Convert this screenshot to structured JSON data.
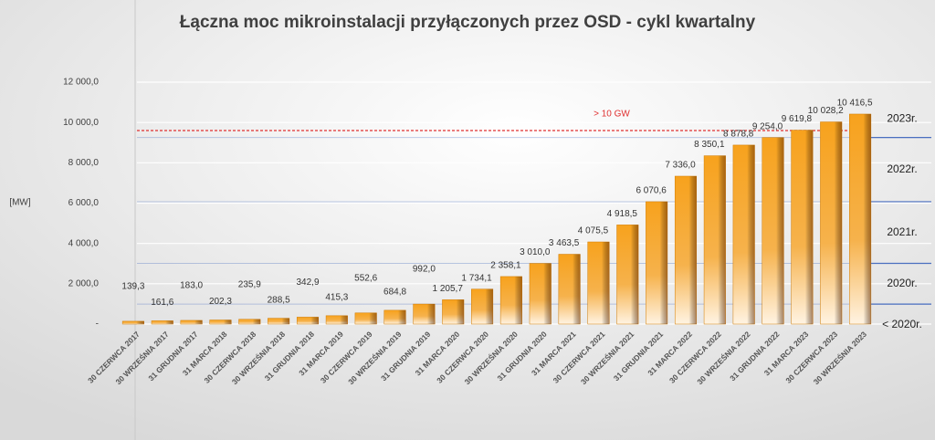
{
  "chart_data": {
    "type": "bar",
    "title": "Łączna moc mikroinstalacji przyłączonych przez OSD - cykl kwartalny",
    "y_label": "[MW]",
    "categories": [
      "30 CZERWCA 2017",
      "30 WRZEŚNIA 2017",
      "31 GRUDNIA 2017",
      "31 MARCA 2018",
      "30 CZERWCA 2018",
      "30 WRZEŚNIA 2018",
      "31 GRUDNIA 2018",
      "31 MARCA 2019",
      "30 CZERWCA 2019",
      "30 WRZEŚNIA 2019",
      "31 GRUDNIA 2019",
      "31 MARCA 2020",
      "30 CZERWCA 2020",
      "30 WRZEŚNIA 2020",
      "31 GRUDNIA 2020",
      "31 MARCA 2021",
      "30 CZERWCA 2021",
      "30 WRZEŚNIA 2021",
      "31 GRUDNIA 2021",
      "31 MARCA 2022",
      "30 CZERWCA 2022",
      "30 WRZEŚNIA 2022",
      "31 GRUDNIA 2022",
      "31 MARCA 2023",
      "30 CZERWCA 2023",
      "30 WRZEŚNIA 2023"
    ],
    "values": [
      139.3,
      161.6,
      183.0,
      202.3,
      235.9,
      288.5,
      342.9,
      415.3,
      552.6,
      684.8,
      992.0,
      1205.7,
      1734.1,
      2358.1,
      3010.0,
      3463.5,
      4075.5,
      4918.5,
      6070.6,
      7336.0,
      8350.1,
      8878.8,
      9254.0,
      9619.8,
      10028.2,
      10416.5
    ],
    "value_labels": [
      "139,3",
      "161,6",
      "183,0",
      "202,3",
      "235,9",
      "288,5",
      "342,9",
      "415,3",
      "552,6",
      "684,8",
      "992,0",
      "1 205,7",
      "1 734,1",
      "2 358,1",
      "3 010,0",
      "3 463,5",
      "4 075,5",
      "4 918,5",
      "6 070,6",
      "7 336,0",
      "8 350,1",
      "8 878,8",
      "9 254,0",
      "9 619,8",
      "10 028,2",
      "10 416,5"
    ],
    "color": "#f39a1a",
    "ylim": [
      0,
      12000
    ],
    "yticks": [
      {
        "value": 0,
        "label": "-"
      },
      {
        "value": 2000,
        "label": "2 000,0"
      },
      {
        "value": 4000,
        "label": "4 000,0"
      },
      {
        "value": 6000,
        "label": "6 000,0"
      },
      {
        "value": 8000,
        "label": "8 000,0"
      },
      {
        "value": 10000,
        "label": "10 000,0"
      },
      {
        "value": 12000,
        "label": "12 000,0"
      }
    ],
    "grid": true,
    "reference_line": {
      "value": 9600,
      "label": "> 10 GW",
      "color": "#e03030"
    },
    "year_lines": [
      992.0,
      3010.0,
      6070.6,
      9254.0
    ],
    "year_line_color": "#4a6fc0",
    "year_labels": [
      "< 2020r.",
      "2020r.",
      "2021r.",
      "2022r.",
      "2023r."
    ]
  }
}
